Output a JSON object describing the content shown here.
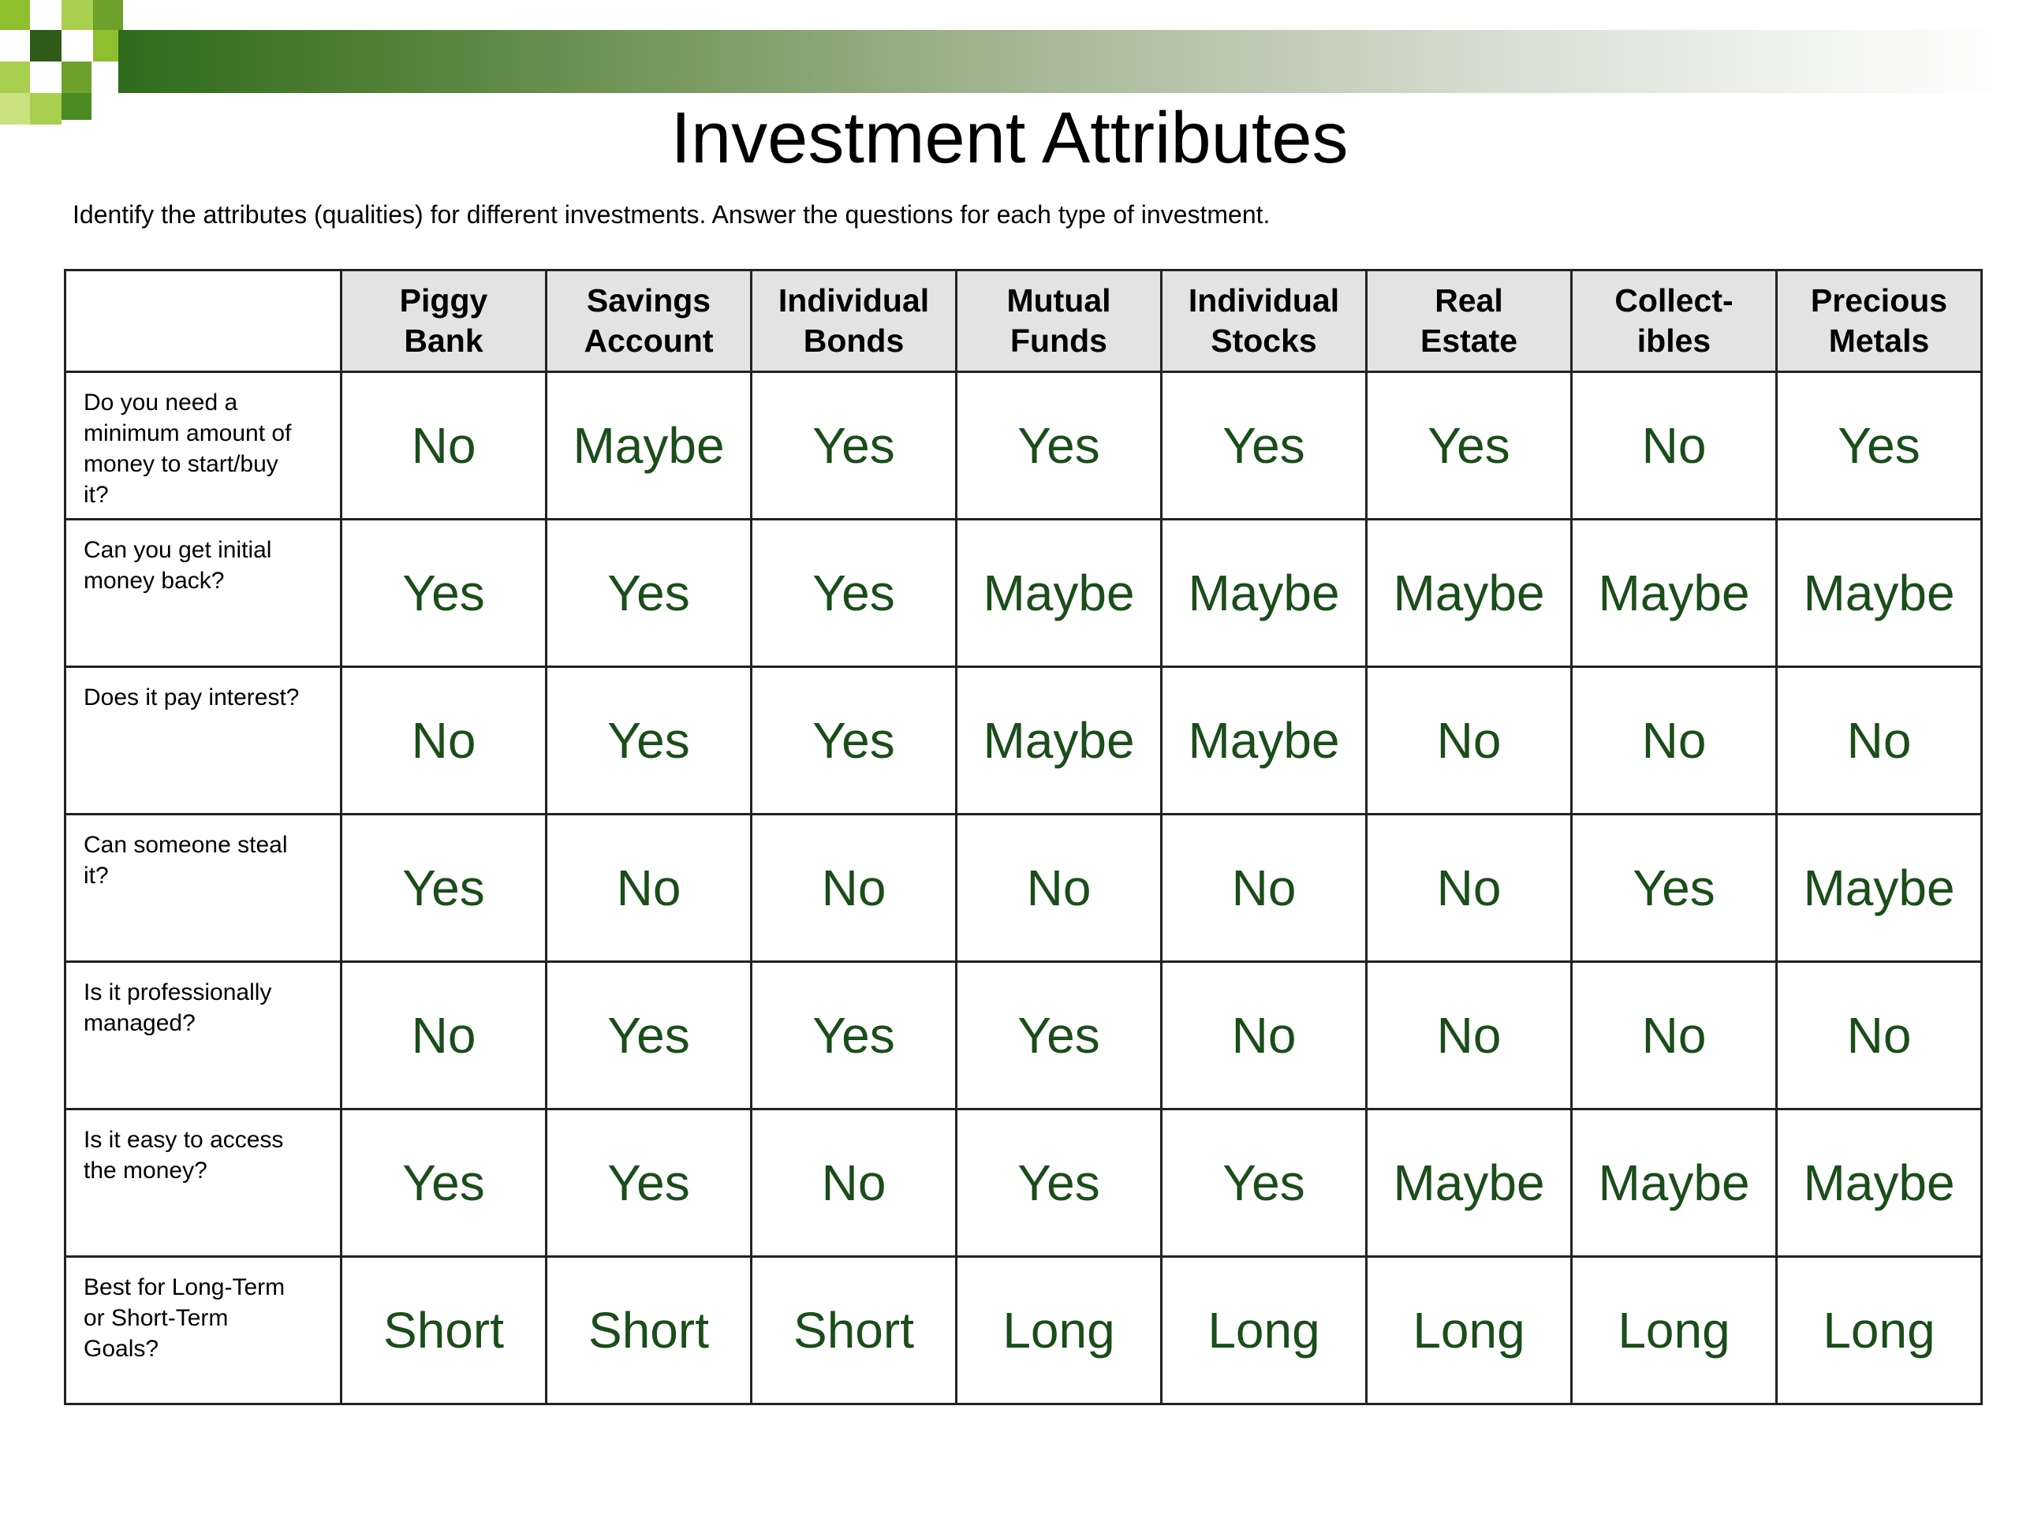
{
  "slide": {
    "title": "Investment Attributes",
    "instructions": "Identify the attributes (qualities) for different investments. Answer the questions for each type of investment."
  },
  "table": {
    "columns": [
      "Piggy\nBank",
      "Savings\nAccount",
      "Individual\nBonds",
      "Mutual\nFunds",
      "Individual\nStocks",
      "Real\nEstate",
      "Collect-\nibles",
      "Precious\nMetals"
    ],
    "rows": [
      {
        "question": "Do you need a\nminimum amount of\nmoney to start/buy\nit?",
        "answers": [
          "No",
          "Maybe",
          "Yes",
          "Yes",
          "Yes",
          "Yes",
          "No",
          "Yes"
        ]
      },
      {
        "question": "Can you get initial\nmoney back?",
        "answers": [
          "Yes",
          "Yes",
          "Yes",
          "Maybe",
          "Maybe",
          "Maybe",
          "Maybe",
          "Maybe"
        ]
      },
      {
        "question": "Does it pay interest?",
        "answers": [
          "No",
          "Yes",
          "Yes",
          "Maybe",
          "Maybe",
          "No",
          "No",
          "No"
        ]
      },
      {
        "question": "Can someone steal\nit?",
        "answers": [
          "Yes",
          "No",
          "No",
          "No",
          "No",
          "No",
          "Yes",
          "Maybe"
        ]
      },
      {
        "question": "Is it professionally\nmanaged?",
        "answers": [
          "No",
          "Yes",
          "Yes",
          "Yes",
          "No",
          "No",
          "No",
          "No"
        ]
      },
      {
        "question": "Is it easy to access\nthe money?",
        "answers": [
          "Yes",
          "Yes",
          "No",
          "Yes",
          "Yes",
          "Maybe",
          "Maybe",
          "Maybe"
        ]
      },
      {
        "question": "Best for Long-Term\nor Short-Term\nGoals?",
        "answers": [
          "Short",
          "Short",
          "Short",
          "Long",
          "Long",
          "Long",
          "Long",
          "Long"
        ]
      }
    ]
  },
  "colors": {
    "answer_text": "#1a4d1a",
    "header_fill": "#e3e3e3",
    "banner_dark": "#2f6b1e",
    "banner_light": "#a9cf4e"
  }
}
